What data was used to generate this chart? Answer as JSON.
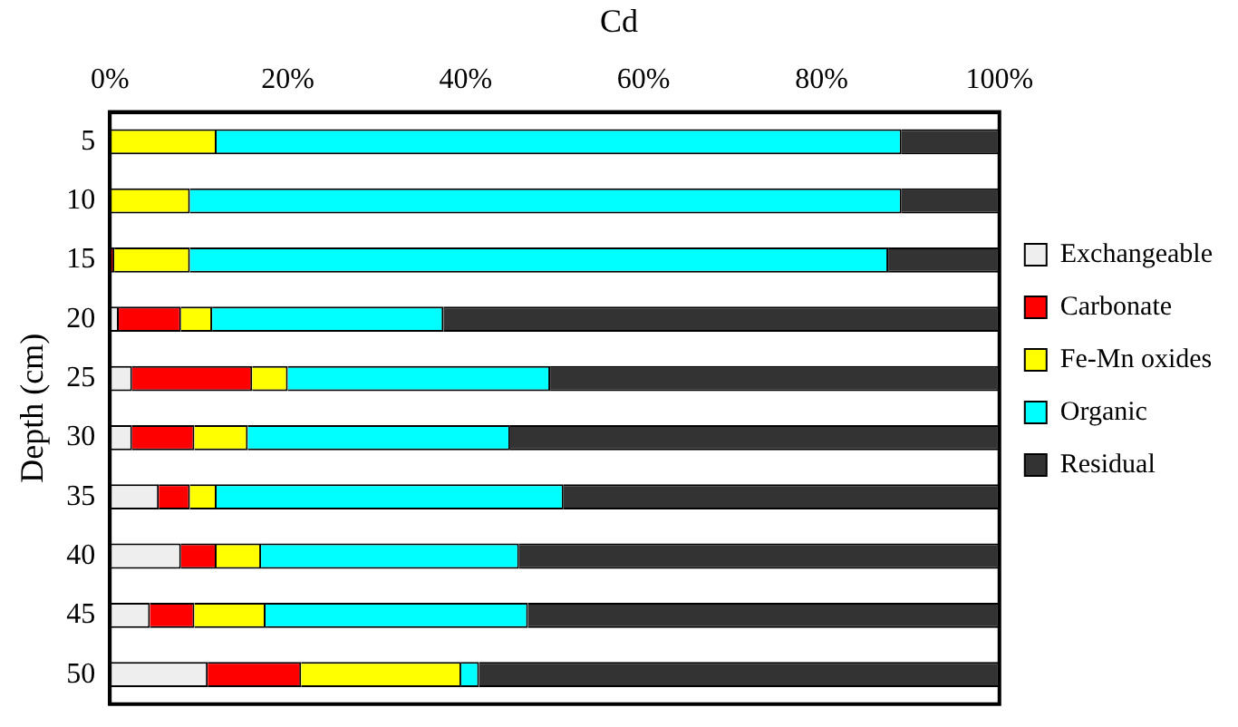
{
  "chart_data": {
    "type": "bar",
    "orientation": "horizontal",
    "stacked": true,
    "title": "Cd",
    "ylabel": "Depth (cm)",
    "categories": [
      "5",
      "10",
      "15",
      "20",
      "25",
      "30",
      "35",
      "40",
      "45",
      "50"
    ],
    "series": [
      {
        "name": "Exchangeable",
        "color": "#eeeeee",
        "values": [
          0,
          0,
          0,
          1,
          2.5,
          2.5,
          5.5,
          8,
          4.5,
          11
        ]
      },
      {
        "name": "Carbonate",
        "color": "#ff0000",
        "values": [
          0,
          0,
          0.5,
          7,
          13.5,
          7,
          3.5,
          4,
          5,
          10.5
        ]
      },
      {
        "name": "Fe-Mn oxides",
        "color": "#ffff00",
        "values": [
          12,
          9,
          8.5,
          3.5,
          4,
          6,
          3,
          5,
          8,
          18
        ]
      },
      {
        "name": "Organic",
        "color": "#00ffff",
        "values": [
          77,
          80,
          78.5,
          26,
          29.5,
          29.5,
          39,
          29,
          29.5,
          2
        ]
      },
      {
        "name": "Residual",
        "color": "#333333",
        "values": [
          11,
          11,
          12.5,
          62.5,
          50.5,
          55,
          49,
          54,
          53,
          58.5
        ]
      }
    ],
    "xlim": [
      0,
      100
    ],
    "xticks": [
      {
        "value": 0,
        "label": "0%"
      },
      {
        "value": 20,
        "label": "20%"
      },
      {
        "value": 40,
        "label": "40%"
      },
      {
        "value": 60,
        "label": "60%"
      },
      {
        "value": 80,
        "label": "80%"
      },
      {
        "value": 100,
        "label": "100%"
      }
    ],
    "grid": false,
    "legend": "right"
  }
}
